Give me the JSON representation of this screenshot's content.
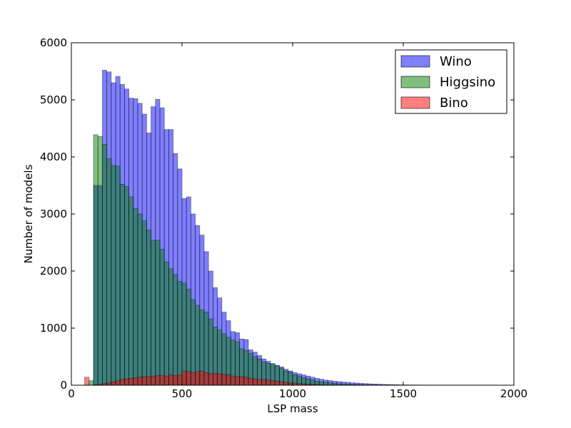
{
  "chart_data": {
    "type": "bar",
    "xlabel": "LSP mass",
    "ylabel": "Number of models",
    "xlim": [
      0,
      2000
    ],
    "ylim": [
      0,
      6000
    ],
    "xticks": [
      0,
      500,
      1000,
      1500,
      2000
    ],
    "yticks": [
      0,
      1000,
      2000,
      3000,
      4000,
      5000,
      6000
    ],
    "bin_width": 20,
    "legend_position": "top-right",
    "series": [
      {
        "name": "Wino",
        "color": "#0000ff",
        "bins": [
          {
            "x0": 100,
            "v": 3500
          },
          {
            "x0": 120,
            "v": 3500
          },
          {
            "x0": 140,
            "v": 5520
          },
          {
            "x0": 160,
            "v": 5490
          },
          {
            "x0": 180,
            "v": 5300
          },
          {
            "x0": 200,
            "v": 5410
          },
          {
            "x0": 220,
            "v": 5270
          },
          {
            "x0": 240,
            "v": 5190
          },
          {
            "x0": 260,
            "v": 5030
          },
          {
            "x0": 280,
            "v": 5020
          },
          {
            "x0": 300,
            "v": 4940
          },
          {
            "x0": 320,
            "v": 4750
          },
          {
            "x0": 340,
            "v": 4420
          },
          {
            "x0": 360,
            "v": 4880
          },
          {
            "x0": 380,
            "v": 5010
          },
          {
            "x0": 400,
            "v": 4860
          },
          {
            "x0": 420,
            "v": 4480
          },
          {
            "x0": 440,
            "v": 4480
          },
          {
            "x0": 460,
            "v": 4060
          },
          {
            "x0": 480,
            "v": 3790
          },
          {
            "x0": 500,
            "v": 3270
          },
          {
            "x0": 520,
            "v": 3300
          },
          {
            "x0": 540,
            "v": 3000
          },
          {
            "x0": 560,
            "v": 2800
          },
          {
            "x0": 580,
            "v": 2630
          },
          {
            "x0": 600,
            "v": 2340
          },
          {
            "x0": 620,
            "v": 2000
          },
          {
            "x0": 640,
            "v": 1710
          },
          {
            "x0": 660,
            "v": 1530
          },
          {
            "x0": 680,
            "v": 1280
          },
          {
            "x0": 700,
            "v": 1130
          },
          {
            "x0": 720,
            "v": 940
          },
          {
            "x0": 740,
            "v": 920
          },
          {
            "x0": 760,
            "v": 810
          },
          {
            "x0": 780,
            "v": 800
          },
          {
            "x0": 800,
            "v": 620
          },
          {
            "x0": 820,
            "v": 580
          },
          {
            "x0": 840,
            "v": 520
          },
          {
            "x0": 860,
            "v": 460
          },
          {
            "x0": 880,
            "v": 420
          },
          {
            "x0": 900,
            "v": 370
          },
          {
            "x0": 920,
            "v": 350
          },
          {
            "x0": 940,
            "v": 320
          },
          {
            "x0": 960,
            "v": 280
          },
          {
            "x0": 980,
            "v": 250
          },
          {
            "x0": 1000,
            "v": 220
          },
          {
            "x0": 1020,
            "v": 200
          },
          {
            "x0": 1040,
            "v": 180
          },
          {
            "x0": 1060,
            "v": 160
          },
          {
            "x0": 1080,
            "v": 140
          },
          {
            "x0": 1100,
            "v": 120
          },
          {
            "x0": 1120,
            "v": 105
          },
          {
            "x0": 1140,
            "v": 90
          },
          {
            "x0": 1160,
            "v": 80
          },
          {
            "x0": 1180,
            "v": 70
          },
          {
            "x0": 1200,
            "v": 62
          },
          {
            "x0": 1220,
            "v": 55
          },
          {
            "x0": 1240,
            "v": 50
          },
          {
            "x0": 1260,
            "v": 42
          },
          {
            "x0": 1280,
            "v": 38
          },
          {
            "x0": 1300,
            "v": 32
          },
          {
            "x0": 1320,
            "v": 28
          },
          {
            "x0": 1340,
            "v": 24
          },
          {
            "x0": 1360,
            "v": 20
          },
          {
            "x0": 1380,
            "v": 18
          },
          {
            "x0": 1400,
            "v": 15
          },
          {
            "x0": 1420,
            "v": 12
          },
          {
            "x0": 1440,
            "v": 10
          },
          {
            "x0": 1460,
            "v": 9
          },
          {
            "x0": 1480,
            "v": 7
          },
          {
            "x0": 1500,
            "v": 6
          },
          {
            "x0": 1520,
            "v": 5
          },
          {
            "x0": 1540,
            "v": 4
          },
          {
            "x0": 1560,
            "v": 3
          },
          {
            "x0": 1580,
            "v": 3
          },
          {
            "x0": 1600,
            "v": 2
          },
          {
            "x0": 1620,
            "v": 2
          },
          {
            "x0": 1640,
            "v": 2
          },
          {
            "x0": 1660,
            "v": 1
          },
          {
            "x0": 1680,
            "v": 1
          },
          {
            "x0": 1700,
            "v": 1
          },
          {
            "x0": 1720,
            "v": 1
          },
          {
            "x0": 1740,
            "v": 1
          },
          {
            "x0": 1760,
            "v": 1
          },
          {
            "x0": 1780,
            "v": 1
          }
        ]
      },
      {
        "name": "Higgsino",
        "color": "#008000",
        "bins": [
          {
            "x0": 80,
            "v": 80
          },
          {
            "x0": 100,
            "v": 4390
          },
          {
            "x0": 120,
            "v": 4360
          },
          {
            "x0": 140,
            "v": 4220
          },
          {
            "x0": 160,
            "v": 3970
          },
          {
            "x0": 180,
            "v": 3850
          },
          {
            "x0": 200,
            "v": 3840
          },
          {
            "x0": 220,
            "v": 3520
          },
          {
            "x0": 240,
            "v": 3480
          },
          {
            "x0": 260,
            "v": 3300
          },
          {
            "x0": 280,
            "v": 3100
          },
          {
            "x0": 300,
            "v": 3000
          },
          {
            "x0": 320,
            "v": 2880
          },
          {
            "x0": 340,
            "v": 2720
          },
          {
            "x0": 360,
            "v": 2540
          },
          {
            "x0": 380,
            "v": 2540
          },
          {
            "x0": 400,
            "v": 2380
          },
          {
            "x0": 420,
            "v": 2160
          },
          {
            "x0": 440,
            "v": 2040
          },
          {
            "x0": 460,
            "v": 1940
          },
          {
            "x0": 480,
            "v": 1820
          },
          {
            "x0": 500,
            "v": 1790
          },
          {
            "x0": 520,
            "v": 1680
          },
          {
            "x0": 540,
            "v": 1500
          },
          {
            "x0": 560,
            "v": 1400
          },
          {
            "x0": 580,
            "v": 1320
          },
          {
            "x0": 600,
            "v": 1280
          },
          {
            "x0": 620,
            "v": 1160
          },
          {
            "x0": 640,
            "v": 1020
          },
          {
            "x0": 660,
            "v": 970
          },
          {
            "x0": 680,
            "v": 900
          },
          {
            "x0": 700,
            "v": 840
          },
          {
            "x0": 720,
            "v": 790
          },
          {
            "x0": 740,
            "v": 760
          },
          {
            "x0": 760,
            "v": 640
          },
          {
            "x0": 780,
            "v": 610
          },
          {
            "x0": 800,
            "v": 560
          },
          {
            "x0": 820,
            "v": 500
          },
          {
            "x0": 840,
            "v": 460
          },
          {
            "x0": 860,
            "v": 410
          },
          {
            "x0": 880,
            "v": 380
          },
          {
            "x0": 900,
            "v": 380
          },
          {
            "x0": 920,
            "v": 340
          },
          {
            "x0": 940,
            "v": 300
          },
          {
            "x0": 960,
            "v": 250
          },
          {
            "x0": 980,
            "v": 230
          },
          {
            "x0": 1000,
            "v": 180
          },
          {
            "x0": 1020,
            "v": 160
          },
          {
            "x0": 1040,
            "v": 130
          },
          {
            "x0": 1060,
            "v": 110
          },
          {
            "x0": 1080,
            "v": 90
          },
          {
            "x0": 1100,
            "v": 70
          },
          {
            "x0": 1120,
            "v": 60
          },
          {
            "x0": 1140,
            "v": 50
          },
          {
            "x0": 1160,
            "v": 40
          },
          {
            "x0": 1180,
            "v": 30
          },
          {
            "x0": 1200,
            "v": 25
          },
          {
            "x0": 1220,
            "v": 20
          },
          {
            "x0": 1240,
            "v": 15
          },
          {
            "x0": 1260,
            "v": 12
          },
          {
            "x0": 1280,
            "v": 10
          },
          {
            "x0": 1300,
            "v": 8
          },
          {
            "x0": 1320,
            "v": 6
          },
          {
            "x0": 1340,
            "v": 5
          },
          {
            "x0": 1360,
            "v": 4
          },
          {
            "x0": 1380,
            "v": 3
          },
          {
            "x0": 1400,
            "v": 2
          },
          {
            "x0": 1420,
            "v": 2
          },
          {
            "x0": 1440,
            "v": 1
          }
        ]
      },
      {
        "name": "Bino",
        "color": "#ff0000",
        "bins": [
          {
            "x0": 60,
            "v": 140
          },
          {
            "x0": 100,
            "v": 10
          },
          {
            "x0": 120,
            "v": 15
          },
          {
            "x0": 140,
            "v": 30
          },
          {
            "x0": 160,
            "v": 40
          },
          {
            "x0": 180,
            "v": 60
          },
          {
            "x0": 200,
            "v": 80
          },
          {
            "x0": 220,
            "v": 100
          },
          {
            "x0": 240,
            "v": 110
          },
          {
            "x0": 260,
            "v": 120
          },
          {
            "x0": 280,
            "v": 130
          },
          {
            "x0": 300,
            "v": 140
          },
          {
            "x0": 320,
            "v": 150
          },
          {
            "x0": 340,
            "v": 150
          },
          {
            "x0": 360,
            "v": 160
          },
          {
            "x0": 380,
            "v": 170
          },
          {
            "x0": 400,
            "v": 170
          },
          {
            "x0": 420,
            "v": 160
          },
          {
            "x0": 440,
            "v": 180
          },
          {
            "x0": 460,
            "v": 170
          },
          {
            "x0": 480,
            "v": 180
          },
          {
            "x0": 500,
            "v": 250
          },
          {
            "x0": 520,
            "v": 240
          },
          {
            "x0": 540,
            "v": 220
          },
          {
            "x0": 560,
            "v": 240
          },
          {
            "x0": 580,
            "v": 250
          },
          {
            "x0": 600,
            "v": 220
          },
          {
            "x0": 620,
            "v": 200
          },
          {
            "x0": 640,
            "v": 210
          },
          {
            "x0": 660,
            "v": 200
          },
          {
            "x0": 680,
            "v": 190
          },
          {
            "x0": 700,
            "v": 180
          },
          {
            "x0": 720,
            "v": 160
          },
          {
            "x0": 740,
            "v": 150
          },
          {
            "x0": 760,
            "v": 150
          },
          {
            "x0": 780,
            "v": 140
          },
          {
            "x0": 800,
            "v": 120
          },
          {
            "x0": 820,
            "v": 110
          },
          {
            "x0": 840,
            "v": 100
          },
          {
            "x0": 860,
            "v": 100
          },
          {
            "x0": 880,
            "v": 90
          },
          {
            "x0": 900,
            "v": 80
          },
          {
            "x0": 920,
            "v": 70
          },
          {
            "x0": 940,
            "v": 60
          },
          {
            "x0": 960,
            "v": 50
          },
          {
            "x0": 980,
            "v": 40
          },
          {
            "x0": 1000,
            "v": 35
          },
          {
            "x0": 1020,
            "v": 30
          },
          {
            "x0": 1040,
            "v": 25
          },
          {
            "x0": 1060,
            "v": 20
          },
          {
            "x0": 1080,
            "v": 15
          },
          {
            "x0": 1100,
            "v": 10
          },
          {
            "x0": 1120,
            "v": 8
          },
          {
            "x0": 1140,
            "v": 6
          },
          {
            "x0": 1160,
            "v": 5
          },
          {
            "x0": 1180,
            "v": 4
          },
          {
            "x0": 1200,
            "v": 3
          },
          {
            "x0": 1220,
            "v": 2
          },
          {
            "x0": 1240,
            "v": 2
          },
          {
            "x0": 1260,
            "v": 1
          }
        ]
      }
    ]
  }
}
